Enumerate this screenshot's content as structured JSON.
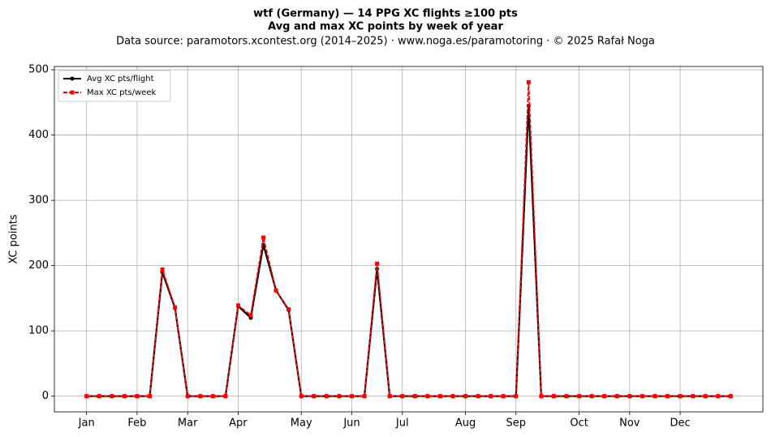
{
  "chart_data": {
    "type": "line",
    "title": "wtf (Germany)  —  14 PPG XC flights ≥100 pts",
    "subtitle": "Avg and max XC points by week of year",
    "source": "Data source: paramotors.xcontest.org (2014–2025)  ·  www.noga.es/paramotoring  ·  © 2025 Rafał Noga",
    "ylabel": "XC points",
    "x": [
      1,
      2,
      3,
      4,
      5,
      6,
      7,
      8,
      9,
      10,
      11,
      12,
      13,
      14,
      15,
      16,
      17,
      18,
      19,
      20,
      21,
      22,
      23,
      24,
      25,
      26,
      27,
      28,
      29,
      30,
      31,
      32,
      33,
      34,
      35,
      36,
      37,
      38,
      39,
      40,
      41,
      42,
      43,
      44,
      45,
      46,
      47,
      48,
      49,
      50,
      51,
      52
    ],
    "series": [
      {
        "name": "Avg XC pts/flight",
        "color": "#000000",
        "marker": "circle",
        "dash": false,
        "values": [
          0,
          0,
          0,
          0,
          0,
          0,
          190,
          135,
          0,
          0,
          0,
          0,
          138,
          120,
          232,
          162,
          132,
          0,
          0,
          0,
          0,
          0,
          0,
          195,
          0,
          0,
          0,
          0,
          0,
          0,
          0,
          0,
          0,
          0,
          0,
          445,
          0,
          0,
          0,
          0,
          0,
          0,
          0,
          0,
          0,
          0,
          0,
          0,
          0,
          0,
          0,
          0
        ]
      },
      {
        "name": "Max XC pts/week",
        "color": "#ff0000",
        "marker": "square",
        "dash": true,
        "values": [
          0,
          0,
          0,
          0,
          0,
          0,
          194,
          136,
          0,
          0,
          0,
          0,
          139,
          124,
          243,
          162,
          133,
          0,
          0,
          0,
          0,
          0,
          0,
          203,
          0,
          0,
          0,
          0,
          0,
          0,
          0,
          0,
          0,
          0,
          0,
          481,
          0,
          0,
          0,
          0,
          0,
          0,
          0,
          0,
          0,
          0,
          0,
          0,
          0,
          0,
          0,
          0
        ]
      }
    ],
    "xlim": [
      -1.55,
      54.55
    ],
    "xticks": [
      {
        "value": 1,
        "label": "Jan"
      },
      {
        "value": 5,
        "label": "Feb"
      },
      {
        "value": 9,
        "label": "Mar"
      },
      {
        "value": 13,
        "label": "Apr"
      },
      {
        "value": 18,
        "label": "May"
      },
      {
        "value": 22,
        "label": "Jun"
      },
      {
        "value": 26,
        "label": "Jul"
      },
      {
        "value": 31,
        "label": "Aug"
      },
      {
        "value": 35,
        "label": "Sep"
      },
      {
        "value": 40,
        "label": "Oct"
      },
      {
        "value": 44,
        "label": "Nov"
      },
      {
        "value": 48,
        "label": "Dec"
      }
    ],
    "ylim": [
      -24.05,
      505.05
    ],
    "yticks": [
      0,
      100,
      200,
      300,
      400,
      500
    ],
    "grid": true,
    "legend": "upper left"
  }
}
